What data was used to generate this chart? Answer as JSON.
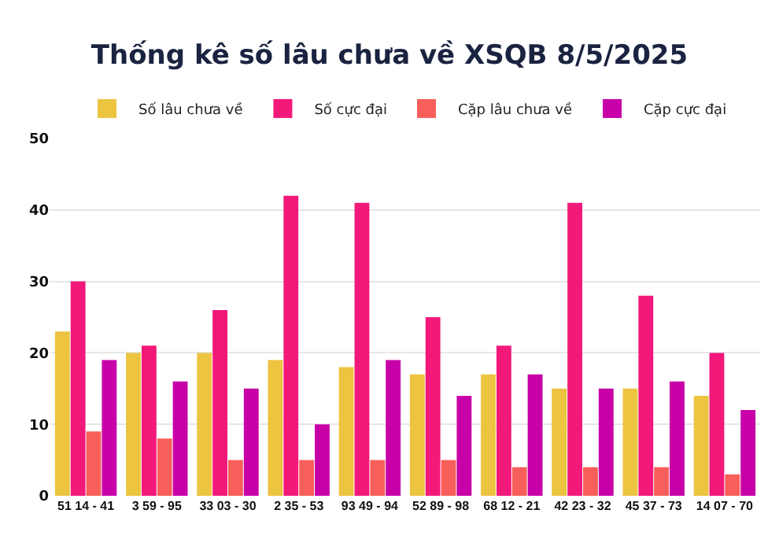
{
  "chart_data": {
    "type": "bar",
    "title": "Thống kê số lâu chưa về XSQB 8/5/2025",
    "categories": [
      "51 14 - 41",
      "3 59 - 95",
      "33 03 - 30",
      "2 35 - 53",
      "93 49 - 94",
      "52 89 - 98",
      "68 12 - 21",
      "42 23 - 32",
      "45 37 - 73",
      "14 07 - 70"
    ],
    "series": [
      {
        "name": "Số lâu chưa về",
        "color": "#ecc440",
        "values": [
          23,
          20,
          20,
          19,
          18,
          17,
          17,
          15,
          15,
          14
        ]
      },
      {
        "name": "Số cực đại",
        "color": "#f2197a",
        "values": [
          30,
          21,
          26,
          42,
          41,
          25,
          21,
          41,
          28,
          20
        ]
      },
      {
        "name": "Cặp lâu chưa về",
        "color": "#f85f5a",
        "values": [
          9,
          8,
          5,
          5,
          5,
          5,
          4,
          4,
          4,
          3
        ]
      },
      {
        "name": "Cặp cực đại",
        "color": "#c800a8",
        "values": [
          19,
          16,
          15,
          10,
          19,
          14,
          17,
          15,
          16,
          12
        ]
      }
    ],
    "ylim": [
      0,
      50
    ],
    "yticks": [
      0,
      10,
      20,
      30,
      40,
      50
    ],
    "grid": "y",
    "legend": "top"
  }
}
